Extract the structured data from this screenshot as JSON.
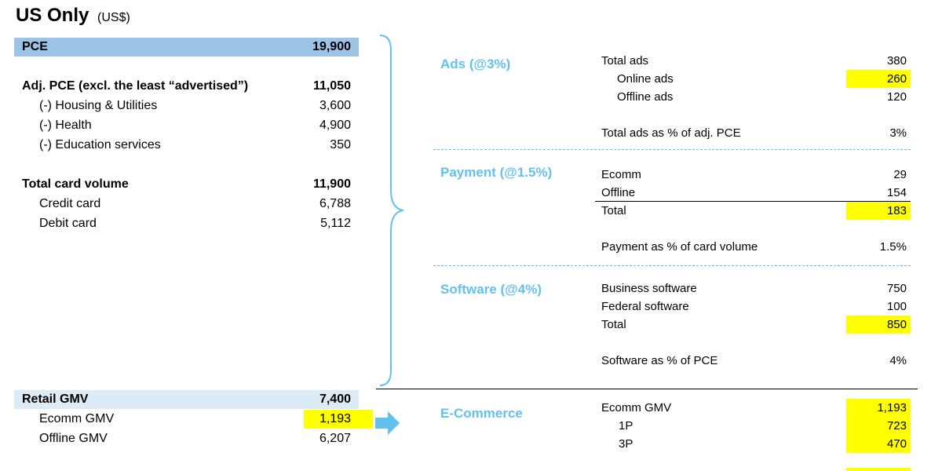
{
  "header": {
    "title": "US Only",
    "subtitle": "(US$)"
  },
  "left": {
    "pce": {
      "label": "PCE",
      "value": "19,900"
    },
    "adj_pce": {
      "label": "Adj. PCE (excl. the least “advertised”)",
      "value": "11,050"
    },
    "exclusions": [
      {
        "label": "(-) Housing & Utilities",
        "value": "3,600"
      },
      {
        "label": "(-) Health",
        "value": "4,900"
      },
      {
        "label": "(-) Education services",
        "value": "350"
      }
    ],
    "card_volume": {
      "label": "Total card volume",
      "value": "11,900"
    },
    "cards": [
      {
        "label": "Credit card",
        "value": "6,788"
      },
      {
        "label": "Debit card",
        "value": "5,112"
      }
    ],
    "retail_gmv": {
      "label": "Retail GMV",
      "value": "7,400"
    },
    "gmv": [
      {
        "label": "Ecomm GMV",
        "value": "1,193"
      },
      {
        "label": "Offline GMV",
        "value": "6,207"
      }
    ]
  },
  "ads": {
    "heading": "Ads (@3%)",
    "total": {
      "label": "Total ads",
      "value": "380"
    },
    "online": {
      "label": "Online ads",
      "value": "260"
    },
    "offline": {
      "label": "Offline ads",
      "value": "120"
    },
    "pct": {
      "label": "Total ads as % of adj. PCE",
      "value": "3%"
    }
  },
  "payment": {
    "heading": "Payment (@1.5%)",
    "ecomm": {
      "label": "Ecomm",
      "value": "29"
    },
    "offline": {
      "label": "Offline",
      "value": "154"
    },
    "total": {
      "label": "Total",
      "value": "183"
    },
    "pct": {
      "label": "Payment as % of card volume",
      "value": "1.5%"
    }
  },
  "software": {
    "heading": "Software (@4%)",
    "business": {
      "label": "Business software",
      "value": "750"
    },
    "federal": {
      "label": "Federal software",
      "value": "100"
    },
    "total": {
      "label": "Total",
      "value": "850"
    },
    "pct": {
      "label": "Software as % of PCE",
      "value": "4%"
    }
  },
  "ecommerce": {
    "heading": "E-Commerce",
    "gmv": {
      "label": "Ecomm GMV",
      "value": "1,193"
    },
    "first_party": {
      "label": "1P",
      "value": "723"
    },
    "third_party": {
      "label": "3P",
      "value": "470"
    }
  },
  "colors": {
    "accent": "#63c1ef",
    "highlight": "#ffff00",
    "band": "#9dc3e6",
    "band_light": "#ddebf7"
  }
}
